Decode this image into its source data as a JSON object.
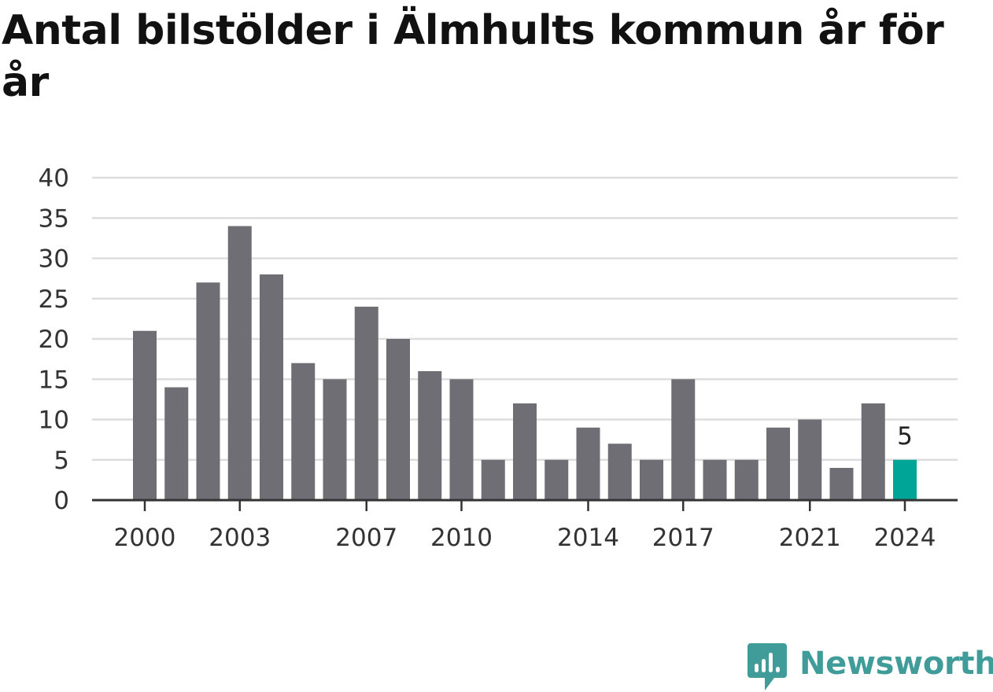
{
  "title": "Antal bilstölder i Älmhults kommun år för år",
  "brand": {
    "name": "Newsworthy",
    "icon": "newsworthy-logo-icon",
    "color": "#3f9c98"
  },
  "chart_data": {
    "type": "bar",
    "title": "Antal bilstölder i Älmhults kommun år för år",
    "xlabel": "",
    "ylabel": "",
    "categories": [
      2000,
      2001,
      2002,
      2003,
      2004,
      2005,
      2006,
      2007,
      2008,
      2009,
      2010,
      2011,
      2012,
      2013,
      2014,
      2015,
      2016,
      2017,
      2018,
      2019,
      2020,
      2021,
      2022,
      2023,
      2024
    ],
    "values": [
      21,
      14,
      27,
      34,
      28,
      17,
      15,
      24,
      20,
      16,
      15,
      5,
      12,
      5,
      9,
      7,
      5,
      15,
      5,
      5,
      9,
      10,
      4,
      12,
      5
    ],
    "ylim": [
      0,
      40
    ],
    "yticks": [
      0,
      5,
      10,
      15,
      20,
      25,
      30,
      35,
      40
    ],
    "xticks": [
      2000,
      2003,
      2007,
      2010,
      2014,
      2017,
      2021,
      2024
    ],
    "highlight": {
      "category": 2024,
      "label": "5"
    },
    "grid": "horizontal",
    "colors": {
      "bar": "#6f6e74",
      "highlight": "#00a598",
      "grid": "#dddddd",
      "axis": "#333333"
    }
  }
}
